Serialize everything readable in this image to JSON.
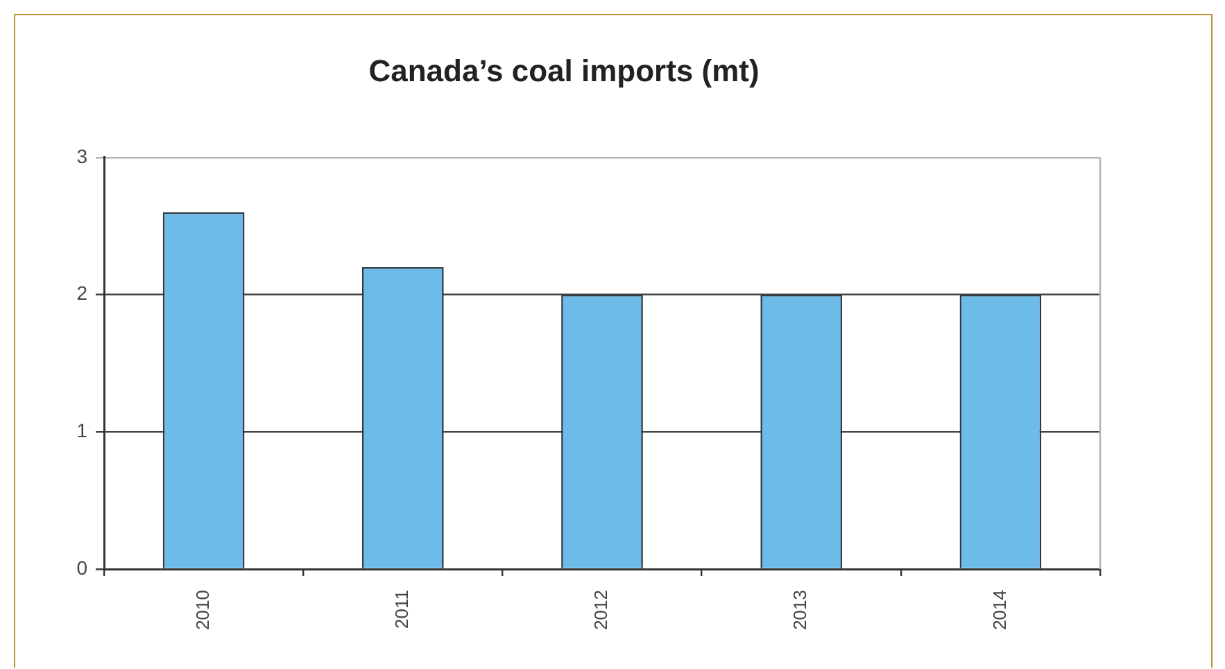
{
  "chart_data": {
    "type": "bar",
    "title": "Canada’s coal imports (mt)",
    "categories": [
      "2010",
      "2011",
      "2012",
      "2013",
      "2014"
    ],
    "values": [
      2.6,
      2.2,
      2,
      2,
      2
    ],
    "color": "#6cbbe9",
    "ylim": [
      0,
      3
    ],
    "yticks": [
      0,
      1,
      2,
      3
    ],
    "grid": "y"
  }
}
